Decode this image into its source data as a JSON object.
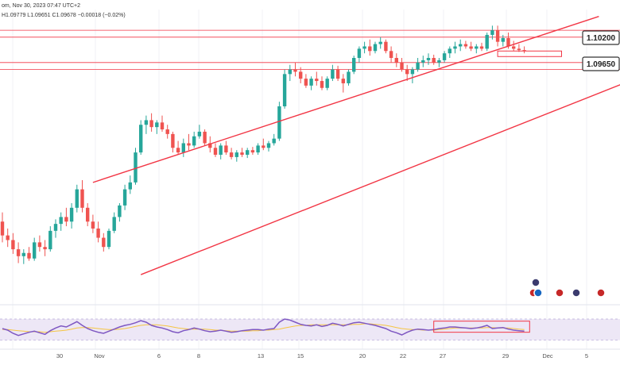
{
  "header": {
    "title_fragment": "om, Nov 30, 2023 07:47 UTC+2",
    "ohlc_line": "H1.09779  L1.09651  C1.09678  −0.00018 (−0.02%)"
  },
  "price_levels": [
    {
      "label": "1.10200",
      "value": 1.102
    },
    {
      "label": "1.09650",
      "value": 1.0965
    }
  ],
  "colors": {
    "up": "#26a69a",
    "down": "#ef5350",
    "channel": "#f23645",
    "level_line": "#f23645",
    "rsi_line": "#7e57c2",
    "rsi_ma": "#f5c542",
    "rsi_band": "#ede7f6"
  },
  "chart_data": {
    "type": "candlestick",
    "x_axis_labels": [
      "30",
      "Nov",
      "6",
      "8",
      "13",
      "15",
      "20",
      "22",
      "27",
      "29",
      "Dec",
      "5"
    ],
    "y_range": [
      1.045,
      1.108
    ],
    "candles": [
      [
        1.062,
        1.064,
        1.0575,
        1.059
      ],
      [
        1.059,
        1.0605,
        1.0565,
        1.058
      ],
      [
        1.058,
        1.0595,
        1.055,
        1.056
      ],
      [
        1.056,
        1.0575,
        1.053,
        1.0545
      ],
      [
        1.0545,
        1.056,
        1.0528,
        1.0552
      ],
      [
        1.0552,
        1.0565,
        1.0535,
        1.054
      ],
      [
        1.054,
        1.0585,
        1.0535,
        1.0575
      ],
      [
        1.0575,
        1.059,
        1.0555,
        1.0565
      ],
      [
        1.0565,
        1.058,
        1.0545,
        1.056
      ],
      [
        1.056,
        1.061,
        1.0555,
        1.06
      ],
      [
        1.06,
        1.0625,
        1.0585,
        1.0615
      ],
      [
        1.0615,
        1.064,
        1.06,
        1.063
      ],
      [
        1.063,
        1.065,
        1.061,
        1.062
      ],
      [
        1.062,
        1.066,
        1.0605,
        1.065
      ],
      [
        1.065,
        1.07,
        1.064,
        1.069
      ],
      [
        1.069,
        1.071,
        1.064,
        1.065
      ],
      [
        1.065,
        1.066,
        1.061,
        1.062
      ],
      [
        1.062,
        1.0635,
        1.0595,
        1.0605
      ],
      [
        1.0605,
        1.062,
        1.0575,
        1.0585
      ],
      [
        1.0585,
        1.0595,
        1.0555,
        1.0565
      ],
      [
        1.0565,
        1.0605,
        1.056,
        1.06
      ],
      [
        1.06,
        1.064,
        1.0595,
        1.063
      ],
      [
        1.063,
        1.066,
        1.062,
        1.0655
      ],
      [
        1.0655,
        1.07,
        1.0645,
        1.069
      ],
      [
        1.069,
        1.072,
        1.068,
        1.0705
      ],
      [
        1.0705,
        1.078,
        1.07,
        1.077
      ],
      [
        1.077,
        1.084,
        1.0765,
        1.083
      ],
      [
        1.083,
        1.085,
        1.081,
        1.084
      ],
      [
        1.084,
        1.0855,
        1.0815,
        1.0825
      ],
      [
        1.0825,
        1.084,
        1.081,
        1.0835
      ],
      [
        1.0835,
        1.085,
        1.0815,
        1.082
      ],
      [
        1.082,
        1.083,
        1.08,
        1.081
      ],
      [
        1.081,
        1.0815,
        1.077,
        1.078
      ],
      [
        1.078,
        1.0795,
        1.0765,
        1.077
      ],
      [
        1.077,
        1.08,
        1.076,
        1.079
      ],
      [
        1.079,
        1.081,
        1.0775,
        1.0785
      ],
      [
        1.0785,
        1.0815,
        1.078,
        1.0805
      ],
      [
        1.0805,
        1.083,
        1.08,
        1.0815
      ],
      [
        1.0815,
        1.082,
        1.0785,
        1.079
      ],
      [
        1.079,
        1.0805,
        1.077,
        1.078
      ],
      [
        1.078,
        1.079,
        1.076,
        1.0765
      ],
      [
        1.0765,
        1.079,
        1.0755,
        1.0785
      ],
      [
        1.0785,
        1.0795,
        1.0765,
        1.077
      ],
      [
        1.077,
        1.078,
        1.0755,
        1.076
      ],
      [
        1.076,
        1.0775,
        1.075,
        1.077
      ],
      [
        1.077,
        1.078,
        1.076,
        1.0765
      ],
      [
        1.0765,
        1.078,
        1.0758,
        1.0775
      ],
      [
        1.0775,
        1.0782,
        1.0765,
        1.077
      ],
      [
        1.077,
        1.079,
        1.0765,
        1.0785
      ],
      [
        1.0785,
        1.08,
        1.0775,
        1.078
      ],
      [
        1.078,
        1.0795,
        1.0772,
        1.079
      ],
      [
        1.079,
        1.081,
        1.0785,
        1.08
      ],
      [
        1.08,
        1.088,
        1.0795,
        1.087
      ],
      [
        1.087,
        1.095,
        1.0865,
        1.094
      ],
      [
        1.094,
        1.096,
        1.0925,
        1.095
      ],
      [
        1.095,
        1.0965,
        1.0935,
        1.0945
      ],
      [
        1.0945,
        1.0955,
        1.092,
        1.093
      ],
      [
        1.093,
        1.094,
        1.091,
        1.0915
      ],
      [
        1.0915,
        1.0935,
        1.0905,
        1.093
      ],
      [
        1.093,
        1.0945,
        1.0915,
        1.0925
      ],
      [
        1.0925,
        1.0935,
        1.0905,
        1.091
      ],
      [
        1.091,
        1.0935,
        1.0905,
        1.093
      ],
      [
        1.093,
        1.096,
        1.0925,
        1.095
      ],
      [
        1.095,
        1.0958,
        1.0925,
        1.093
      ],
      [
        1.093,
        1.094,
        1.09,
        1.092
      ],
      [
        1.092,
        1.095,
        1.0915,
        1.0945
      ],
      [
        1.0945,
        1.098,
        1.094,
        1.0975
      ],
      [
        1.0975,
        1.1,
        1.0965,
        1.0995
      ],
      [
        1.0995,
        1.101,
        1.0985,
        1.1
      ],
      [
        1.1,
        1.1015,
        1.098,
        1.099
      ],
      [
        1.099,
        1.101,
        1.0985,
        1.1005
      ],
      [
        1.1005,
        1.102,
        1.0995,
        1.101
      ],
      [
        1.101,
        1.1015,
        1.0985,
        1.099
      ],
      [
        1.099,
        1.1,
        1.0965,
        1.0975
      ],
      [
        1.0975,
        1.0985,
        1.0955,
        1.0965
      ],
      [
        1.0965,
        1.0975,
        1.0945,
        1.095
      ],
      [
        1.095,
        1.096,
        1.0925,
        1.094
      ],
      [
        1.094,
        1.0955,
        1.092,
        1.095
      ],
      [
        1.095,
        1.0975,
        1.0945,
        1.0965
      ],
      [
        1.0965,
        1.098,
        1.0955,
        1.097
      ],
      [
        1.097,
        1.0985,
        1.096,
        1.0975
      ],
      [
        1.0975,
        1.0982,
        1.096,
        1.0965
      ],
      [
        1.0965,
        1.0975,
        1.0955,
        1.097
      ],
      [
        1.097,
        1.099,
        1.0965,
        1.0985
      ],
      [
        1.0985,
        1.1,
        1.0975,
        1.0995
      ],
      [
        1.0995,
        1.101,
        1.0985,
        1.1
      ],
      [
        1.1,
        1.1015,
        1.099,
        1.1005
      ],
      [
        1.1005,
        1.1012,
        1.0995,
        1.1
      ],
      [
        1.1,
        1.101,
        1.099,
        1.0995
      ],
      [
        1.0995,
        1.1005,
        1.0985,
        1.1
      ],
      [
        1.1,
        1.1008,
        1.099,
        1.0995
      ],
      [
        1.0995,
        1.103,
        1.099,
        1.1025
      ],
      [
        1.1025,
        1.1045,
        1.1015,
        1.1035
      ],
      [
        1.1035,
        1.1045,
        1.1,
        1.101
      ],
      [
        1.101,
        1.1025,
        1.1,
        1.1018
      ],
      [
        1.1018,
        1.103,
        1.0995,
        1.1
      ],
      [
        1.1,
        1.1012,
        1.099,
        1.0995
      ],
      [
        1.0995,
        1.1005,
        1.0988,
        1.0992
      ],
      [
        1.0992,
        1.1,
        1.0985,
        1.099
      ]
    ],
    "rsi": [
      52,
      49,
      43,
      39,
      42,
      45,
      47,
      44,
      41,
      48,
      53,
      57,
      55,
      60,
      65,
      58,
      52,
      48,
      45,
      43,
      47,
      51,
      55,
      58,
      60,
      63,
      67,
      64,
      58,
      55,
      53,
      50,
      46,
      44,
      48,
      50,
      53,
      51,
      48,
      46,
      47,
      49,
      47,
      45,
      46,
      48,
      49,
      50,
      50,
      49,
      51,
      52,
      64,
      70,
      68,
      64,
      60,
      58,
      57,
      59,
      56,
      58,
      62,
      60,
      57,
      60,
      63,
      64,
      62,
      60,
      58,
      55,
      52,
      47,
      44,
      40,
      45,
      49,
      51,
      50,
      49,
      50,
      52,
      53,
      55,
      55,
      54,
      53,
      52,
      53,
      55,
      58,
      52,
      53,
      54,
      51,
      49,
      48,
      47
    ],
    "rsi_ma": [
      50,
      50,
      49,
      48,
      47,
      46,
      46,
      46,
      45,
      46,
      47,
      48,
      49,
      51,
      53,
      54,
      54,
      53,
      52,
      51,
      50,
      50,
      51,
      52,
      54,
      56,
      58,
      59,
      59,
      59,
      58,
      57,
      55,
      53,
      52,
      51,
      51,
      51,
      51,
      50,
      49,
      49,
      48,
      47,
      47,
      47,
      47,
      48,
      48,
      49,
      49,
      50,
      51,
      53,
      55,
      57,
      58,
      58,
      59,
      59,
      59,
      59,
      59,
      59,
      59,
      59,
      60,
      60,
      61,
      61,
      60,
      59,
      58,
      56,
      54,
      52,
      51,
      50,
      50,
      49,
      49,
      49,
      50,
      51,
      52,
      53,
      53,
      53,
      53,
      53,
      53,
      54,
      54,
      53,
      53,
      53,
      52,
      51,
      50
    ],
    "rsi_range": [
      25,
      85
    ],
    "rsi_band": [
      30,
      70
    ],
    "channel": {
      "upper": [
        [
          1.0705,
          17
        ],
        [
          1.1065,
          112
        ]
      ],
      "lower": [
        [
          1.0505,
          26
        ],
        [
          1.099,
          132
        ]
      ]
    }
  }
}
